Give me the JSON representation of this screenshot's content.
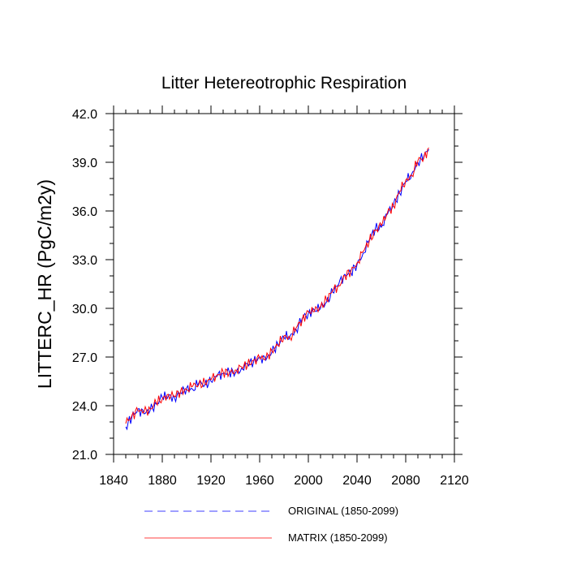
{
  "chart_data": {
    "type": "line",
    "title": "Litter Hetereotrophic Respiration",
    "xlabel": "",
    "ylabel": "LITTERC_HR  (PgC/m2y)",
    "xlim": [
      1840,
      2120
    ],
    "ylim": [
      21.0,
      42.0
    ],
    "x_ticks": [
      1840,
      1880,
      1920,
      1960,
      2000,
      2040,
      2080,
      2120
    ],
    "x_tick_labels": [
      "1840",
      "1880",
      "1920",
      "1960",
      "2000",
      "2040",
      "2080",
      "2120"
    ],
    "y_ticks": [
      21.0,
      24.0,
      27.0,
      30.0,
      33.0,
      36.0,
      39.0,
      42.0
    ],
    "y_tick_labels": [
      "21.0",
      "24.0",
      "27.0",
      "30.0",
      "33.0",
      "36.0",
      "39.0",
      "42.0"
    ],
    "grid": false,
    "legend_position": "bottom",
    "series": [
      {
        "name": "ORIGINAL (1850-2099)",
        "color": "#0000ff",
        "style": "dashed",
        "x": [
          1850,
          1855,
          1860,
          1865,
          1870,
          1875,
          1880,
          1885,
          1890,
          1895,
          1900,
          1905,
          1910,
          1915,
          1920,
          1925,
          1930,
          1935,
          1940,
          1945,
          1950,
          1955,
          1960,
          1965,
          1970,
          1975,
          1980,
          1985,
          1990,
          1995,
          2000,
          2005,
          2010,
          2015,
          2020,
          2025,
          2030,
          2035,
          2040,
          2045,
          2050,
          2055,
          2060,
          2065,
          2070,
          2075,
          2080,
          2085,
          2090,
          2095,
          2099
        ],
        "values": [
          22.7,
          23.3,
          23.8,
          23.5,
          23.7,
          24.1,
          24.5,
          24.6,
          24.5,
          24.8,
          25.1,
          25.0,
          25.4,
          25.3,
          25.5,
          25.8,
          26.0,
          26.1,
          26.0,
          26.3,
          26.6,
          26.7,
          27.0,
          26.8,
          27.3,
          27.8,
          28.2,
          28.3,
          28.7,
          29.4,
          29.7,
          29.9,
          30.0,
          30.4,
          31.0,
          31.5,
          32.1,
          32.2,
          32.7,
          33.4,
          34.2,
          34.9,
          35.0,
          35.8,
          36.4,
          37.1,
          37.8,
          38.3,
          39.0,
          39.4,
          39.8
        ]
      },
      {
        "name": "MATRIX (1850-2099)",
        "color": "#ff0000",
        "style": "solid",
        "x": [
          1850,
          1855,
          1860,
          1865,
          1870,
          1875,
          1880,
          1885,
          1890,
          1895,
          1900,
          1905,
          1910,
          1915,
          1920,
          1925,
          1930,
          1935,
          1940,
          1945,
          1950,
          1955,
          1960,
          1965,
          1970,
          1975,
          1980,
          1985,
          1990,
          1995,
          2000,
          2005,
          2010,
          2015,
          2020,
          2025,
          2030,
          2035,
          2040,
          2045,
          2050,
          2055,
          2060,
          2065,
          2070,
          2075,
          2080,
          2085,
          2090,
          2095,
          2099
        ],
        "values": [
          22.9,
          23.4,
          23.7,
          23.6,
          23.8,
          24.2,
          24.4,
          24.7,
          24.6,
          24.9,
          25.0,
          25.2,
          25.3,
          25.4,
          25.6,
          25.9,
          26.1,
          26.0,
          26.2,
          26.4,
          26.5,
          26.8,
          26.9,
          26.9,
          27.4,
          27.7,
          28.3,
          28.2,
          28.8,
          29.3,
          29.8,
          29.8,
          30.1,
          30.5,
          31.1,
          31.4,
          32.0,
          32.3,
          32.8,
          33.5,
          34.1,
          34.8,
          35.1,
          35.9,
          36.3,
          37.2,
          37.9,
          38.2,
          39.1,
          39.3,
          39.9
        ]
      }
    ]
  }
}
